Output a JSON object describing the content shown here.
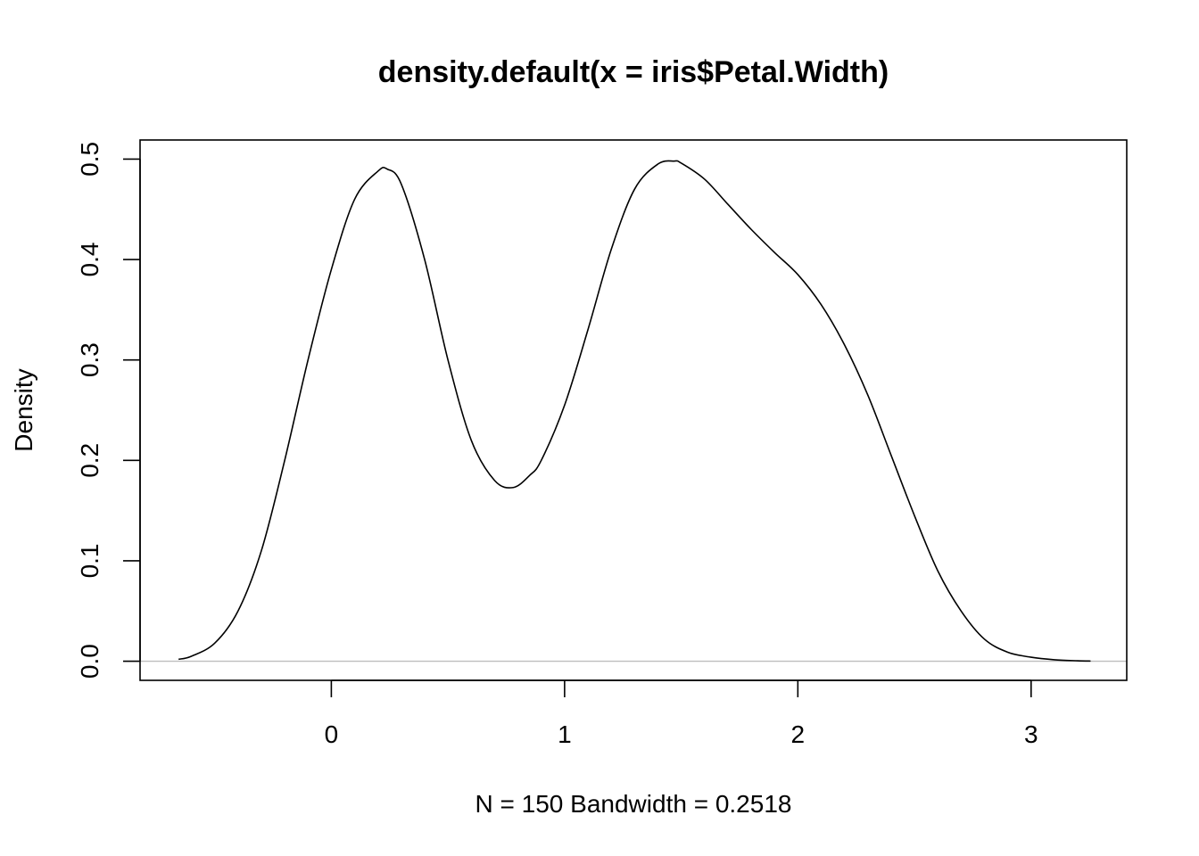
{
  "chart_data": {
    "type": "line",
    "title": "density.default(x = iris$Petal.Width)",
    "xlabel": "N = 150   Bandwidth = 0.2518",
    "ylabel": "Density",
    "xlim": [
      -0.82,
      3.41
    ],
    "ylim": [
      -0.019,
      0.519
    ],
    "x_ticks": [
      0,
      1,
      2,
      3
    ],
    "x_tick_labels": [
      "0",
      "1",
      "2",
      "3"
    ],
    "y_ticks": [
      0,
      0.1,
      0.2,
      0.3,
      0.4,
      0.5
    ],
    "y_tick_labels": [
      "0.0",
      "0.1",
      "0.2",
      "0.3",
      "0.4",
      "0.5"
    ],
    "grid": false,
    "baseline": {
      "y": 0,
      "color": "#bebebe"
    },
    "series": [
      {
        "color": "#000000",
        "x": [
          -0.655,
          -0.6,
          -0.5,
          -0.4,
          -0.3,
          -0.2,
          -0.1,
          0.0,
          0.1,
          0.2,
          0.24,
          0.3,
          0.4,
          0.5,
          0.6,
          0.7,
          0.78,
          0.85,
          0.9,
          1.0,
          1.1,
          1.2,
          1.3,
          1.4,
          1.47,
          1.5,
          1.6,
          1.7,
          1.8,
          1.9,
          2.0,
          2.1,
          2.2,
          2.3,
          2.4,
          2.5,
          2.6,
          2.7,
          2.8,
          2.9,
          3.0,
          3.1,
          3.2,
          3.255
        ],
        "y": [
          0.002,
          0.005,
          0.018,
          0.05,
          0.11,
          0.2,
          0.3,
          0.39,
          0.46,
          0.488,
          0.49,
          0.475,
          0.4,
          0.3,
          0.22,
          0.18,
          0.173,
          0.185,
          0.2,
          0.255,
          0.33,
          0.41,
          0.47,
          0.495,
          0.498,
          0.496,
          0.48,
          0.455,
          0.43,
          0.407,
          0.385,
          0.355,
          0.315,
          0.265,
          0.205,
          0.145,
          0.09,
          0.05,
          0.022,
          0.009,
          0.004,
          0.0015,
          0.0005,
          0.0002
        ]
      }
    ]
  }
}
